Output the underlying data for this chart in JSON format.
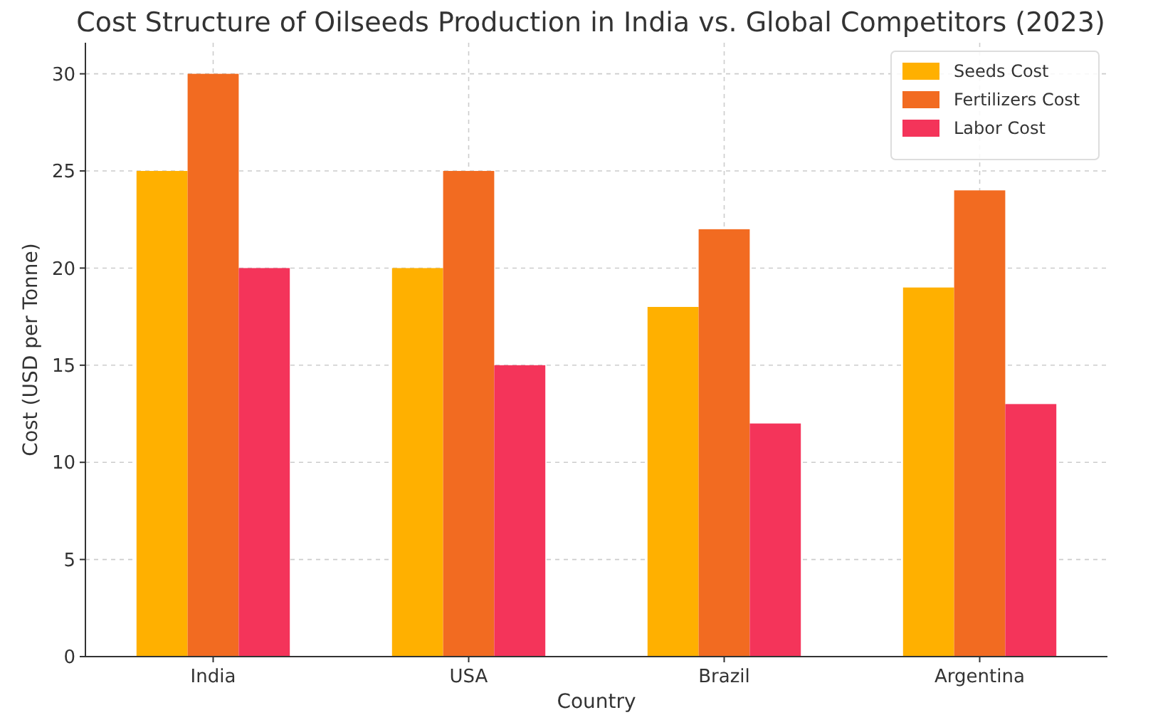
{
  "chart_data": {
    "type": "bar",
    "title": "Cost Structure of Oilseeds Production in India vs. Global Competitors (2023)",
    "xlabel": "Country",
    "ylabel": "Cost (USD per Tonne)",
    "categories": [
      "India",
      "USA",
      "Brazil",
      "Argentina"
    ],
    "series": [
      {
        "name": "Seeds Cost",
        "color": "#ffb000",
        "values": [
          25,
          20,
          18,
          19
        ]
      },
      {
        "name": "Fertilizers Cost",
        "color": "#f26b21",
        "values": [
          30,
          25,
          22,
          24
        ]
      },
      {
        "name": "Labor Cost",
        "color": "#f4345a",
        "values": [
          20,
          15,
          12,
          13
        ]
      }
    ],
    "ylim": [
      0,
      31.6
    ],
    "yticks": [
      0,
      5,
      10,
      15,
      20,
      25,
      30
    ],
    "grid": true,
    "legend": "top right"
  }
}
